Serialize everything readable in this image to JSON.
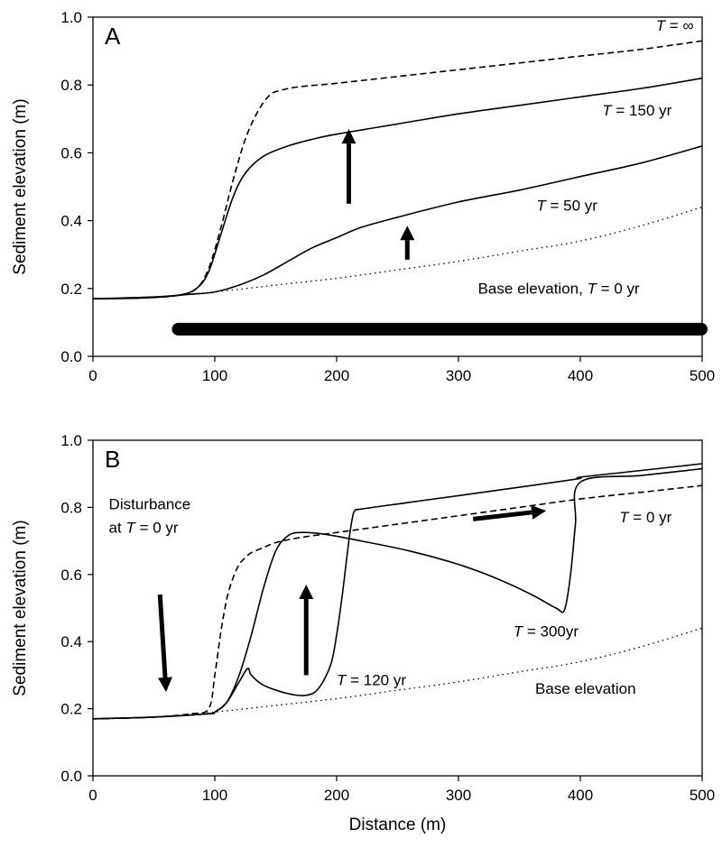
{
  "chart_data": [
    {
      "type": "line",
      "panel_label": "A",
      "xlabel": "",
      "ylabel": "Sediment elevation (m)",
      "xlim": [
        0,
        500
      ],
      "ylim": [
        0.0,
        1.0
      ],
      "x_ticks": [
        "0",
        "100",
        "200",
        "300",
        "400",
        "500"
      ],
      "y_ticks": [
        "0.0",
        "0.2",
        "0.4",
        "0.6",
        "0.8",
        "1.0"
      ],
      "grid": false,
      "series": [
        {
          "style": "dashed",
          "x": [
            0,
            40,
            70,
            85,
            95,
            105,
            115,
            125,
            135,
            145,
            155,
            170,
            200,
            250,
            300,
            350,
            400,
            450,
            500
          ],
          "y": [
            0.17,
            0.172,
            0.18,
            0.2,
            0.26,
            0.38,
            0.52,
            0.64,
            0.72,
            0.77,
            0.785,
            0.795,
            0.805,
            0.825,
            0.845,
            0.865,
            0.885,
            0.905,
            0.93
          ]
        },
        {
          "style": "solid",
          "x": [
            0,
            40,
            70,
            85,
            95,
            105,
            115,
            125,
            140,
            160,
            180,
            200,
            250,
            300,
            350,
            400,
            450,
            500
          ],
          "y": [
            0.17,
            0.172,
            0.18,
            0.2,
            0.25,
            0.36,
            0.47,
            0.54,
            0.59,
            0.62,
            0.64,
            0.655,
            0.685,
            0.715,
            0.74,
            0.765,
            0.79,
            0.82
          ]
        },
        {
          "style": "solid",
          "x": [
            0,
            50,
            80,
            100,
            120,
            140,
            160,
            180,
            200,
            220,
            250,
            300,
            350,
            400,
            450,
            500
          ],
          "y": [
            0.17,
            0.175,
            0.183,
            0.19,
            0.21,
            0.24,
            0.28,
            0.32,
            0.35,
            0.38,
            0.41,
            0.455,
            0.49,
            0.53,
            0.57,
            0.62
          ]
        },
        {
          "style": "dotted",
          "x": [
            0,
            50,
            100,
            150,
            200,
            250,
            300,
            350,
            400,
            450,
            500
          ],
          "y": [
            0.17,
            0.175,
            0.19,
            0.21,
            0.23,
            0.255,
            0.28,
            0.31,
            0.34,
            0.385,
            0.44
          ]
        }
      ],
      "bar": {
        "x_start": 70,
        "x_end": 500,
        "y": 0.08
      },
      "arrows": [
        {
          "x": 210,
          "y_from": 0.45,
          "y_to": 0.67
        },
        {
          "x": 258,
          "y_from": 0.285,
          "y_to": 0.385
        }
      ],
      "annotations": [
        {
          "id": "t-inf",
          "prefix": "T",
          "text": " = ∞",
          "x": 462,
          "y": 0.96
        },
        {
          "id": "t-150",
          "prefix": "T",
          "text": " =  150 yr",
          "x": 418,
          "y": 0.71
        },
        {
          "id": "t-50",
          "prefix": "T",
          "text": " = 50 yr",
          "x": 364,
          "y": 0.43
        },
        {
          "id": "base",
          "prefix": "",
          "text": "Base elevation, ",
          "prefix2": "T",
          "text2": " = 0 yr",
          "x": 316,
          "y": 0.185
        }
      ]
    },
    {
      "type": "line",
      "panel_label": "B",
      "xlabel": "Distance (m)",
      "ylabel": "Sediment elevation (m)",
      "xlim": [
        0,
        500
      ],
      "ylim": [
        0.0,
        1.0
      ],
      "x_ticks": [
        "0",
        "100",
        "200",
        "300",
        "400",
        "500"
      ],
      "y_ticks": [
        "0.0",
        "0.2",
        "0.4",
        "0.6",
        "0.8",
        "1.0"
      ],
      "grid": false,
      "series": [
        {
          "style": "dashed",
          "x": [
            0,
            50,
            80,
            95,
            100,
            105,
            110,
            115,
            120,
            125,
            130,
            140,
            150,
            170,
            200,
            250,
            300,
            350,
            400,
            450,
            500
          ],
          "y": [
            0.17,
            0.175,
            0.185,
            0.2,
            0.3,
            0.43,
            0.53,
            0.59,
            0.63,
            0.65,
            0.665,
            0.68,
            0.695,
            0.71,
            0.725,
            0.75,
            0.775,
            0.8,
            0.825,
            0.845,
            0.865
          ]
        },
        {
          "style": "solid",
          "x": [
            0,
            50,
            95,
            100,
            110,
            120,
            127,
            130,
            140,
            160,
            175,
            185,
            195,
            200,
            205,
            210,
            213,
            215,
            220,
            260,
            300,
            350,
            398,
            400,
            450,
            500
          ],
          "y": [
            0.17,
            0.175,
            0.185,
            0.19,
            0.22,
            0.28,
            0.32,
            0.3,
            0.27,
            0.245,
            0.24,
            0.26,
            0.33,
            0.42,
            0.55,
            0.7,
            0.77,
            0.79,
            0.795,
            0.815,
            0.835,
            0.86,
            0.885,
            0.89,
            0.91,
            0.93
          ]
        },
        {
          "style": "solid",
          "x": [
            0,
            50,
            95,
            100,
            110,
            120,
            130,
            140,
            150,
            160,
            170,
            190,
            220,
            260,
            300,
            330,
            360,
            380,
            387,
            392,
            396,
            400,
            450,
            500
          ],
          "y": [
            0.17,
            0.175,
            0.185,
            0.19,
            0.22,
            0.3,
            0.42,
            0.56,
            0.67,
            0.715,
            0.725,
            0.72,
            0.7,
            0.67,
            0.63,
            0.59,
            0.54,
            0.5,
            0.495,
            0.6,
            0.75,
            0.875,
            0.895,
            0.915
          ]
        },
        {
          "style": "dotted",
          "x": [
            0,
            50,
            100,
            150,
            200,
            250,
            300,
            350,
            400,
            450,
            500
          ],
          "y": [
            0.17,
            0.175,
            0.19,
            0.21,
            0.23,
            0.255,
            0.28,
            0.31,
            0.34,
            0.385,
            0.44
          ]
        }
      ],
      "arrows": [
        {
          "x": 175,
          "y_from": 0.3,
          "y_to": 0.57,
          "x_from": 175,
          "x_to": 175
        },
        {
          "x_from": 312,
          "y_from": 0.765,
          "x_to": 372,
          "y_to": 0.79
        },
        {
          "x_from": 55,
          "y_from": 0.54,
          "x_to": 60,
          "y_to": 0.25
        }
      ],
      "annotations": [
        {
          "id": "disturbance-1",
          "prefix": "",
          "text": "Disturbance",
          "x": 13,
          "y": 0.795
        },
        {
          "id": "disturbance-2",
          "prefix": "",
          "text": "at ",
          "prefix2": "T",
          "text2": " = 0 yr",
          "x": 13,
          "y": 0.725
        },
        {
          "id": "t-0",
          "prefix": "T",
          "text": " = 0 yr",
          "x": 432,
          "y": 0.755
        },
        {
          "id": "t-300",
          "prefix": "T",
          "text": " = 300yr",
          "x": 345,
          "y": 0.415
        },
        {
          "id": "t-120",
          "prefix": "T",
          "text": " = 120 yr",
          "x": 200,
          "y": 0.27
        },
        {
          "id": "base",
          "prefix": "",
          "text": "Base elevation",
          "x": 363,
          "y": 0.245
        }
      ]
    }
  ]
}
